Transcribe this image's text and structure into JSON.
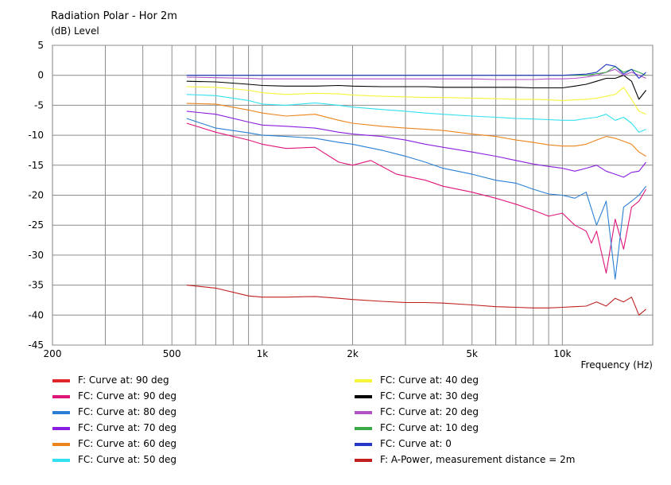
{
  "chart_data": {
    "type": "line",
    "title": "Radiation Polar - Hor 2m",
    "ylabel": "(dB)  Level",
    "xlabel": "Frequency  (Hz)",
    "xscale": "log",
    "xlim": [
      200,
      20000
    ],
    "ylim": [
      -45,
      5
    ],
    "grid": true,
    "y_ticks": [
      "5",
      "0",
      "-5",
      "-10",
      "-15",
      "-20",
      "-25",
      "-30",
      "-35",
      "-40",
      "-45"
    ],
    "y_tick_values": [
      5,
      0,
      -5,
      -10,
      -15,
      -20,
      -25,
      -30,
      -35,
      -40,
      -45
    ],
    "x_ticks": [
      "200",
      "500",
      "1k",
      "2k",
      "5k",
      "10k"
    ],
    "x_tick_values": [
      200,
      500,
      1000,
      2000,
      5000,
      10000
    ],
    "series": [
      {
        "name": "F: Curve at: 90 deg",
        "color": "#e0262b",
        "x": [],
        "y": []
      },
      {
        "name": "FC: Curve at: 90 deg",
        "color": "#e0157a",
        "x": [
          560,
          700,
          900,
          1000,
          1200,
          1500,
          1800,
          2000,
          2300,
          2800,
          3500,
          4000,
          5000,
          6000,
          7000,
          8000,
          9000,
          10000,
          11000,
          12000,
          12500,
          13000,
          14000,
          15000,
          16000,
          17000,
          18000,
          19000
        ],
        "y": [
          -8,
          -9.5,
          -10.8,
          -11.5,
          -12.2,
          -12,
          -14.5,
          -15,
          -14.2,
          -16.5,
          -17.5,
          -18.5,
          -19.5,
          -20.5,
          -21.5,
          -22.5,
          -23.5,
          -23,
          -25,
          -26,
          -28,
          -26,
          -33,
          -24,
          -29,
          -22,
          -21,
          -19
        ]
      },
      {
        "name": "FC: Curve at: 80 deg",
        "color": "#2a7fd4",
        "x": [
          560,
          700,
          900,
          1000,
          1200,
          1500,
          1800,
          2000,
          2500,
          3000,
          3500,
          4000,
          5000,
          6000,
          7000,
          8000,
          9000,
          10000,
          11000,
          12000,
          13000,
          14000,
          15000,
          16000,
          17000,
          18000,
          19000
        ],
        "y": [
          -7.2,
          -8.8,
          -9.6,
          -10,
          -10.2,
          -10.5,
          -11.2,
          -11.5,
          -12.5,
          -13.5,
          -14.5,
          -15.5,
          -16.5,
          -17.5,
          -18,
          -19,
          -19.8,
          -20,
          -20.5,
          -19.5,
          -25,
          -21,
          -34,
          -22,
          -21,
          -20,
          -18.5
        ]
      },
      {
        "name": "FC: Curve at: 70 deg",
        "color": "#8a1ee0",
        "x": [
          560,
          700,
          900,
          1000,
          1200,
          1500,
          1800,
          2000,
          2500,
          3000,
          3500,
          4000,
          5000,
          6000,
          7000,
          8000,
          9000,
          10000,
          11000,
          12000,
          13000,
          14000,
          15000,
          16000,
          17000,
          18000,
          19000
        ],
        "y": [
          -6,
          -6.5,
          -7.8,
          -8.3,
          -8.5,
          -8.8,
          -9.5,
          -9.8,
          -10.2,
          -10.8,
          -11.5,
          -12,
          -12.8,
          -13.5,
          -14.2,
          -14.8,
          -15.2,
          -15.5,
          -16,
          -15.5,
          -15,
          -16,
          -16.5,
          -17,
          -16.2,
          -16,
          -14.5
        ]
      },
      {
        "name": "FC: Curve at: 60 deg",
        "color": "#ec8419",
        "x": [
          560,
          700,
          900,
          1000,
          1200,
          1500,
          1800,
          2000,
          2500,
          3000,
          3500,
          4000,
          5000,
          6000,
          7000,
          8000,
          9000,
          10000,
          11000,
          12000,
          13000,
          14000,
          15000,
          16000,
          17000,
          18000,
          19000
        ],
        "y": [
          -4.7,
          -4.8,
          -5.8,
          -6.3,
          -6.8,
          -6.5,
          -7.5,
          -8,
          -8.5,
          -8.8,
          -9,
          -9.2,
          -9.8,
          -10.2,
          -10.8,
          -11.2,
          -11.6,
          -11.8,
          -11.8,
          -11.5,
          -10.8,
          -10.2,
          -10.5,
          -11,
          -11.5,
          -12.8,
          -13.5
        ]
      },
      {
        "name": "FC: Curve at: 50 deg",
        "color": "#33e0f0",
        "x": [
          560,
          700,
          900,
          1000,
          1200,
          1500,
          1800,
          2000,
          2500,
          3000,
          3500,
          4000,
          5000,
          6000,
          7000,
          8000,
          9000,
          10000,
          11000,
          12000,
          13000,
          14000,
          15000,
          16000,
          17000,
          18000,
          19000
        ],
        "y": [
          -3.2,
          -3.4,
          -4.2,
          -4.8,
          -5,
          -4.6,
          -5,
          -5.3,
          -5.7,
          -6,
          -6.3,
          -6.5,
          -6.8,
          -7,
          -7.2,
          -7.3,
          -7.4,
          -7.5,
          -7.5,
          -7.2,
          -7,
          -6.5,
          -7.5,
          -7,
          -8,
          -9.5,
          -9
        ]
      },
      {
        "name": "FC: Curve at: 40 deg",
        "color": "#f5f53a",
        "x": [
          560,
          700,
          900,
          1000,
          1200,
          1500,
          1800,
          2000,
          2500,
          3000,
          3500,
          4000,
          5000,
          6000,
          7000,
          8000,
          9000,
          10000,
          11000,
          12000,
          13000,
          14000,
          15000,
          16000,
          17000,
          18000,
          19000
        ],
        "y": [
          -1.9,
          -2,
          -2.5,
          -2.9,
          -3.2,
          -3,
          -3.1,
          -3.3,
          -3.5,
          -3.6,
          -3.7,
          -3.7,
          -3.8,
          -3.9,
          -4,
          -4,
          -4.1,
          -4.2,
          -4.1,
          -4,
          -3.8,
          -3.5,
          -3.2,
          -2,
          -4,
          -6,
          -6.5
        ]
      },
      {
        "name": "FC: Curve at: 30 deg",
        "color": "#000000",
        "x": [
          560,
          700,
          900,
          1000,
          1200,
          1500,
          1800,
          2000,
          2500,
          3000,
          3500,
          4000,
          5000,
          6000,
          7000,
          8000,
          9000,
          10000,
          11000,
          12000,
          13000,
          14000,
          15000,
          16000,
          17000,
          18000,
          19000
        ],
        "y": [
          -1,
          -1.1,
          -1.5,
          -1.7,
          -1.8,
          -1.8,
          -1.7,
          -1.8,
          -1.9,
          -1.9,
          -1.9,
          -2,
          -2,
          -2,
          -2,
          -2.1,
          -2.1,
          -2.1,
          -1.8,
          -1.5,
          -1,
          -0.5,
          -0.5,
          0,
          -1,
          -4,
          -2.5
        ]
      },
      {
        "name": "FC: Curve at: 20 deg",
        "color": "#b052c4",
        "x": [
          560,
          700,
          900,
          1000,
          1200,
          1500,
          1800,
          2000,
          2500,
          3000,
          3500,
          4000,
          5000,
          6000,
          7000,
          8000,
          9000,
          10000,
          11000,
          12000,
          13000,
          14000,
          15000,
          16000,
          17000,
          18000,
          19000
        ],
        "y": [
          -0.3,
          -0.4,
          -0.5,
          -0.6,
          -0.6,
          -0.6,
          -0.6,
          -0.6,
          -0.6,
          -0.6,
          -0.6,
          -0.6,
          -0.6,
          -0.7,
          -0.7,
          -0.7,
          -0.6,
          -0.6,
          -0.5,
          -0.3,
          0,
          0.5,
          1,
          0,
          0.5,
          0,
          -0.5
        ]
      },
      {
        "name": "FC: Curve at: 10 deg",
        "color": "#3aa94a",
        "x": [
          560,
          1000,
          2000,
          3000,
          5000,
          8000,
          10000,
          12000,
          14000,
          15000,
          16000,
          17000,
          18000,
          19000
        ],
        "y": [
          0,
          0,
          0,
          0,
          0,
          0,
          0,
          0,
          0.5,
          1.5,
          0.5,
          1,
          0.5,
          0
        ]
      },
      {
        "name": "FC: Curve at: 0",
        "color": "#2437c7",
        "x": [
          560,
          1000,
          2000,
          3000,
          5000,
          8000,
          10000,
          12000,
          13000,
          14000,
          15000,
          16000,
          17000,
          18000,
          19000
        ],
        "y": [
          0,
          0,
          0,
          0,
          0,
          0,
          0,
          0.2,
          0.5,
          1.8,
          1.5,
          0.2,
          1,
          -0.5,
          0.5
        ]
      },
      {
        "name": "F: A-Power, measurement distance = 2m",
        "color": "#c02020",
        "x": [
          560,
          700,
          900,
          1000,
          1200,
          1500,
          1800,
          2000,
          2500,
          3000,
          3500,
          4000,
          5000,
          6000,
          7000,
          8000,
          9000,
          10000,
          11000,
          12000,
          13000,
          14000,
          15000,
          16000,
          17000,
          18000,
          19000
        ],
        "y": [
          -35,
          -35.5,
          -36.8,
          -37,
          -37,
          -36.9,
          -37.2,
          -37.4,
          -37.7,
          -37.9,
          -37.9,
          -38,
          -38.3,
          -38.6,
          -38.7,
          -38.8,
          -38.8,
          -38.7,
          -38.6,
          -38.5,
          -37.8,
          -38.5,
          -37.2,
          -37.8,
          -37,
          -40,
          -39
        ]
      }
    ]
  }
}
